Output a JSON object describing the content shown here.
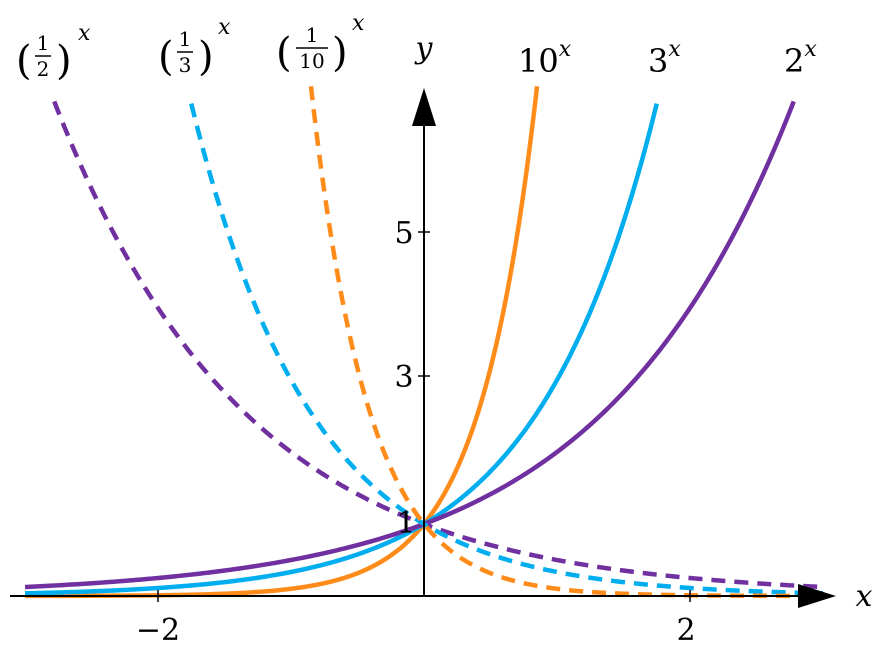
{
  "chart_data": {
    "type": "line",
    "title": "",
    "xlabel": "x",
    "ylabel": "y",
    "xlim": [
      -3.1,
      3.05
    ],
    "ylim": [
      -0.05,
      6.8
    ],
    "x_ticks": [
      {
        "value": -2,
        "label": "−2"
      },
      {
        "value": 2,
        "label": "2"
      }
    ],
    "y_ticks": [
      {
        "value": 3,
        "label": "3"
      },
      {
        "value": 5,
        "label": "5"
      }
    ],
    "intercept_label": "1",
    "grid": false,
    "legend": "none",
    "series": [
      {
        "name": "10",
        "base": 10,
        "exponent": "x",
        "style": "solid",
        "color": "#ff8c1a",
        "x": [
          -3,
          -2,
          -1,
          -0.5,
          0,
          0.25,
          0.5,
          0.75,
          0.85
        ],
        "y": [
          0.001,
          0.01,
          0.1,
          0.316,
          1,
          1.778,
          3.162,
          5.623,
          7.08
        ]
      },
      {
        "name": "3",
        "base": 3,
        "exponent": "x",
        "style": "solid",
        "color": "#00aeef",
        "x": [
          -3,
          -2,
          -1,
          0,
          0.5,
          1,
          1.5,
          1.75
        ],
        "y": [
          0.037,
          0.111,
          0.333,
          1,
          1.732,
          3,
          5.196,
          6.84
        ]
      },
      {
        "name": "2",
        "base": 2,
        "exponent": "x",
        "style": "solid",
        "color": "#7030a0",
        "x": [
          -3,
          -2,
          -1,
          0,
          1,
          2,
          2.5,
          2.78
        ],
        "y": [
          0.125,
          0.25,
          0.5,
          1,
          2,
          4,
          5.657,
          6.87
        ]
      },
      {
        "name": "1/2",
        "base": 0.5,
        "exponent": "x",
        "style": "dashed",
        "color": "#7030a0",
        "x": [
          -2.78,
          -2.5,
          -2,
          -1,
          0,
          1,
          2,
          3
        ],
        "y": [
          6.87,
          5.657,
          4,
          2,
          1,
          0.5,
          0.25,
          0.125
        ]
      },
      {
        "name": "1/3",
        "base": 0.3333,
        "exponent": "x",
        "style": "dashed",
        "color": "#00aeef",
        "x": [
          -1.75,
          -1.5,
          -1,
          -0.5,
          0,
          1,
          2,
          3
        ],
        "y": [
          6.84,
          5.196,
          3,
          1.732,
          1,
          0.333,
          0.111,
          0.037
        ]
      },
      {
        "name": "1/10",
        "base": 0.1,
        "exponent": "x",
        "style": "dashed",
        "color": "#ff8c1a",
        "x": [
          -0.85,
          -0.75,
          -0.5,
          -0.25,
          0,
          1,
          2,
          3
        ],
        "y": [
          7.08,
          5.623,
          3.162,
          1.778,
          1,
          0.1,
          0.01,
          0.001
        ]
      }
    ],
    "curve_labels": [
      {
        "base": "10",
        "sup": "x"
      },
      {
        "base": "3",
        "sup": "x"
      },
      {
        "base": "2",
        "sup": "x"
      },
      {
        "num": "1",
        "den": "2",
        "sup": "x"
      },
      {
        "num": "1",
        "den": "3",
        "sup": "x"
      },
      {
        "num": "1",
        "den": "10",
        "sup": "x"
      }
    ]
  }
}
